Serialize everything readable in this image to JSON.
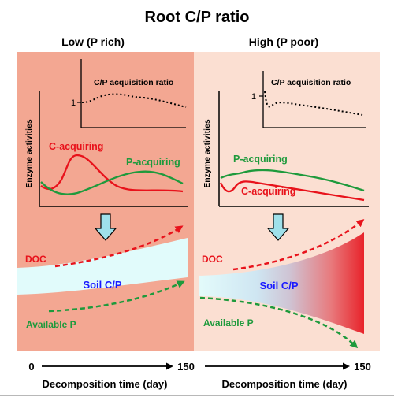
{
  "title": "Root C/P ratio",
  "panels": {
    "left": {
      "heading": "Low (P rich)",
      "background": "#f3a792",
      "inset_label": "C/P acquisition ratio",
      "inset_tick": "1",
      "y_label": "Enzyme activities",
      "c_label": "C-acquiring",
      "p_label": "P-acquiring",
      "doc_label": "DOC",
      "soil_label": "Soil C/P",
      "avp_label": "Available P",
      "x_start": "0",
      "x_end": "150",
      "x_label": "Decomposition time (day)"
    },
    "right": {
      "heading": "High (P poor)",
      "background": "#fbdfd2",
      "inset_label": "C/P acquisition ratio",
      "inset_tick": "1",
      "y_label": "Enzyme activities",
      "c_label": "C-acquiring",
      "p_label": "P-acquiring",
      "doc_label": "DOC",
      "soil_label": "Soil C/P",
      "avp_label": "Available P",
      "x_end": "150",
      "x_label": "Decomposition time (day)"
    }
  },
  "colors": {
    "c_acquiring": "#e8121b",
    "p_acquiring": "#1e9a3c",
    "doc": "#e8121b",
    "available_p": "#1e9a3c",
    "soil_text": "#1a1aff",
    "soil_band_left": "#e1fbfb",
    "soil_band_right_end": "#e8232a",
    "arrow_fill": "#9fe0ea"
  },
  "icons": {
    "down_arrow": "down-arrow-icon"
  }
}
